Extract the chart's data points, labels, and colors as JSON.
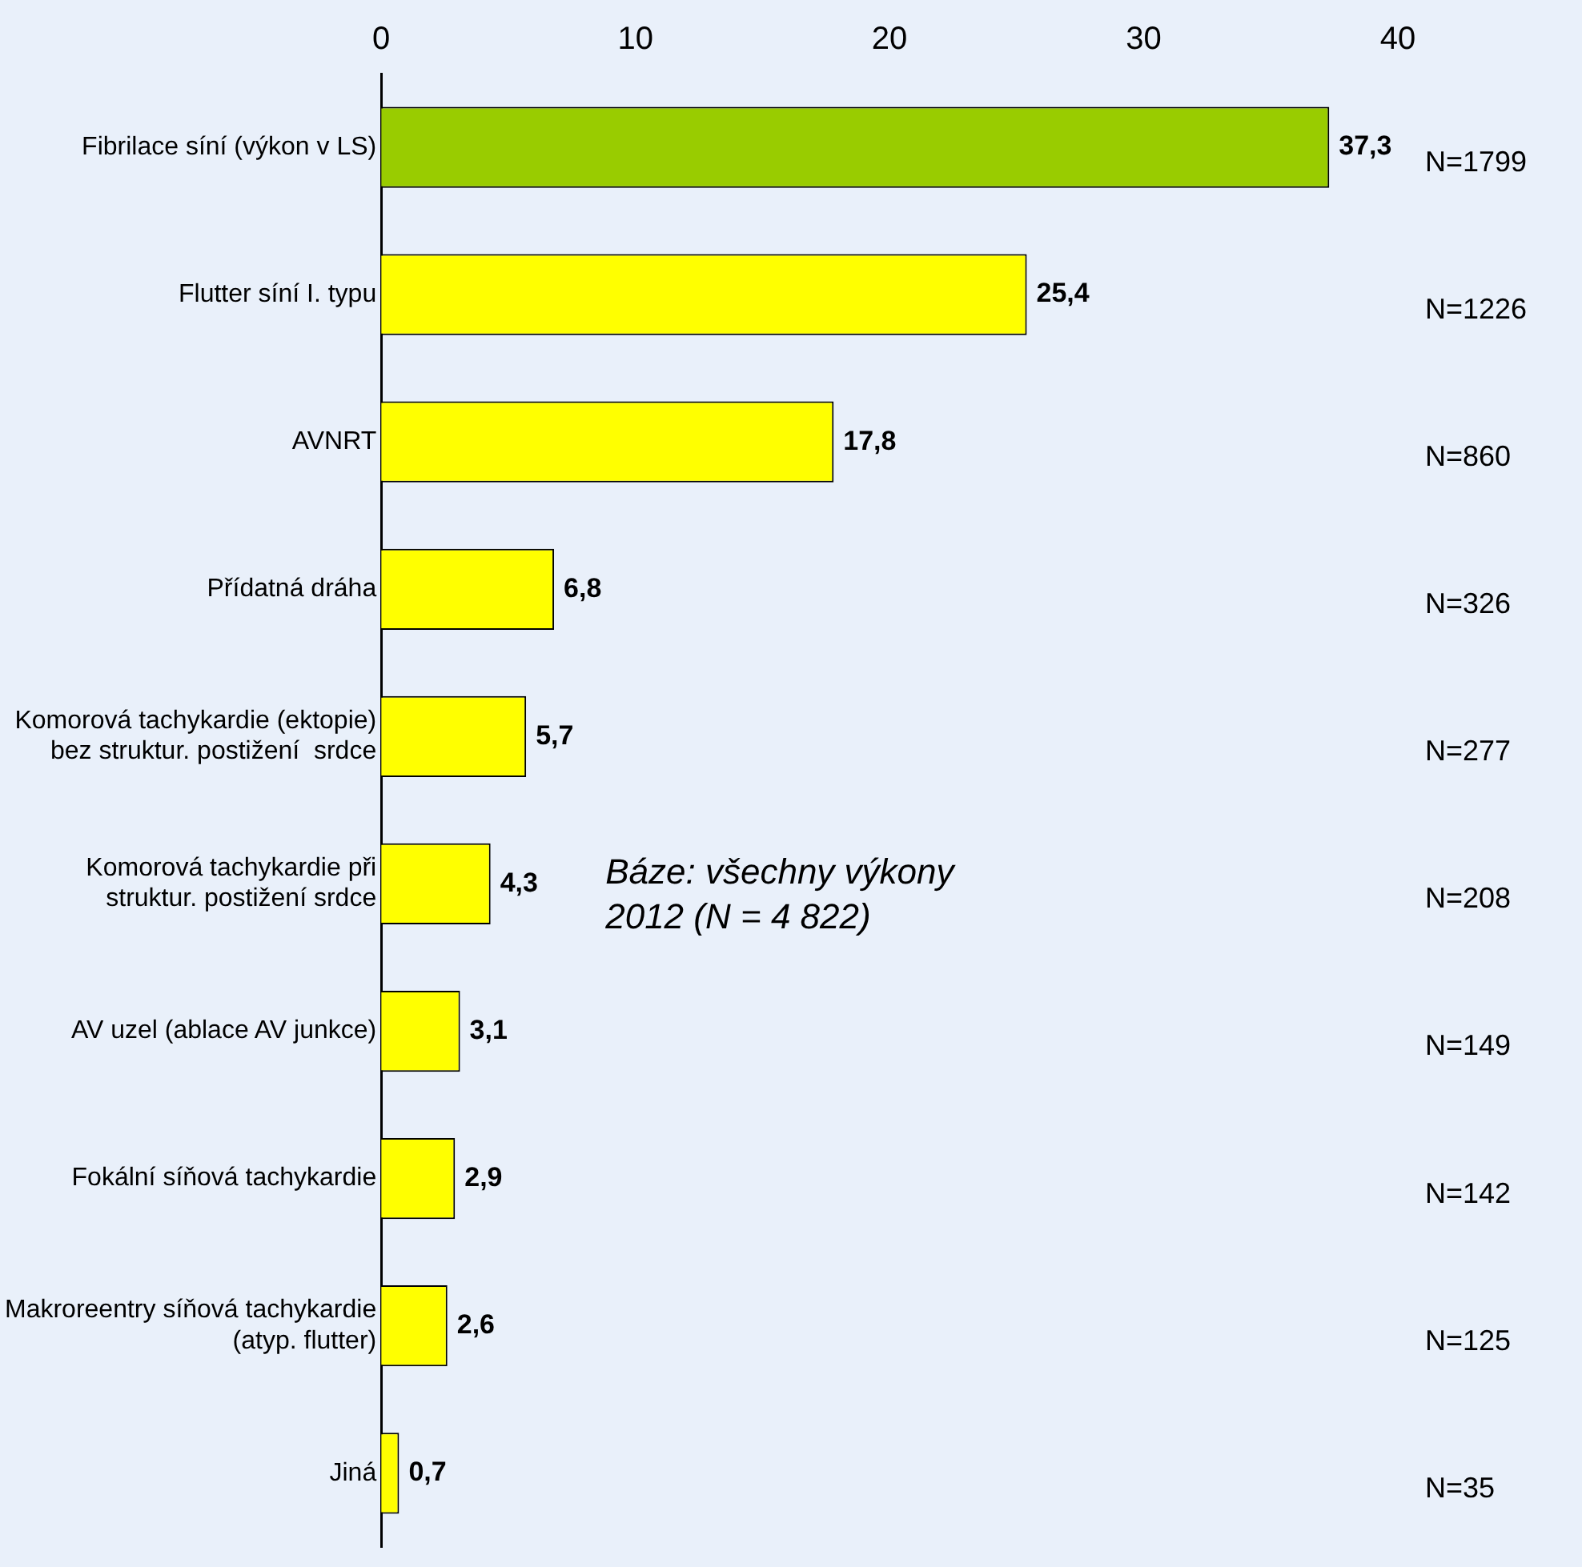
{
  "chart_data": {
    "type": "bar",
    "orientation": "horizontal",
    "categories": [
      "Fibrilace síní (výkon v LS)",
      "Flutter síní I. typu",
      "AVNRT",
      "Přídatná dráha",
      "Komorová tachykardie (ektopie)\nbez struktur. postižení  srdce",
      "Komorová tachykardie při\nstruktur. postižení srdce",
      "AV uzel (ablace AV junkce)",
      "Fokální síňová tachykardie",
      "Makroreentry síňová tachykardie\n(atyp. flutter)",
      "Jiná"
    ],
    "values": [
      37.3,
      25.4,
      17.8,
      6.8,
      5.7,
      4.3,
      3.1,
      2.9,
      2.6,
      0.7
    ],
    "value_labels": [
      "37,3",
      "25,4",
      "17,8",
      "6,8",
      "5,7",
      "4,3",
      "3,1",
      "2,9",
      "2,6",
      "0,7"
    ],
    "colors": [
      "#99cc00",
      "#ffff00",
      "#ffff00",
      "#ffff00",
      "#ffff00",
      "#ffff00",
      "#ffff00",
      "#ffff00",
      "#ffff00",
      "#ffff00"
    ],
    "xlim": [
      0,
      40
    ],
    "xticks": [
      0,
      10,
      20,
      30,
      40
    ],
    "grid": false,
    "legend": false,
    "annotations": [
      "N=1799",
      "N=1226",
      "N=860",
      "N=326",
      "N=277",
      "N=208",
      "N=149",
      "N=142",
      "N=125",
      "N=35",
      "Báze: všechny výkony\n2012 (N = 4 822)"
    ]
  }
}
